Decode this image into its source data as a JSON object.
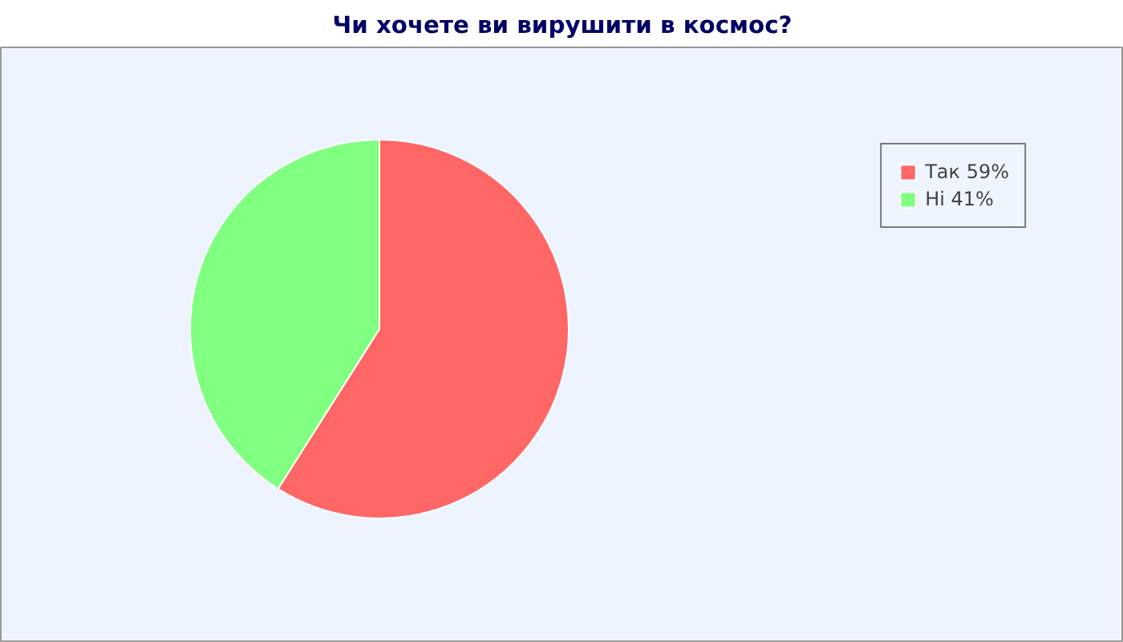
{
  "chart_data": {
    "type": "pie",
    "title": "Чи хочете ви вирушити в космос?",
    "categories": [
      "Так 59%",
      "Ні 41%"
    ],
    "values": [
      59,
      41
    ],
    "colors": [
      "#ff6666",
      "#80ff80"
    ],
    "legend": "top right"
  }
}
